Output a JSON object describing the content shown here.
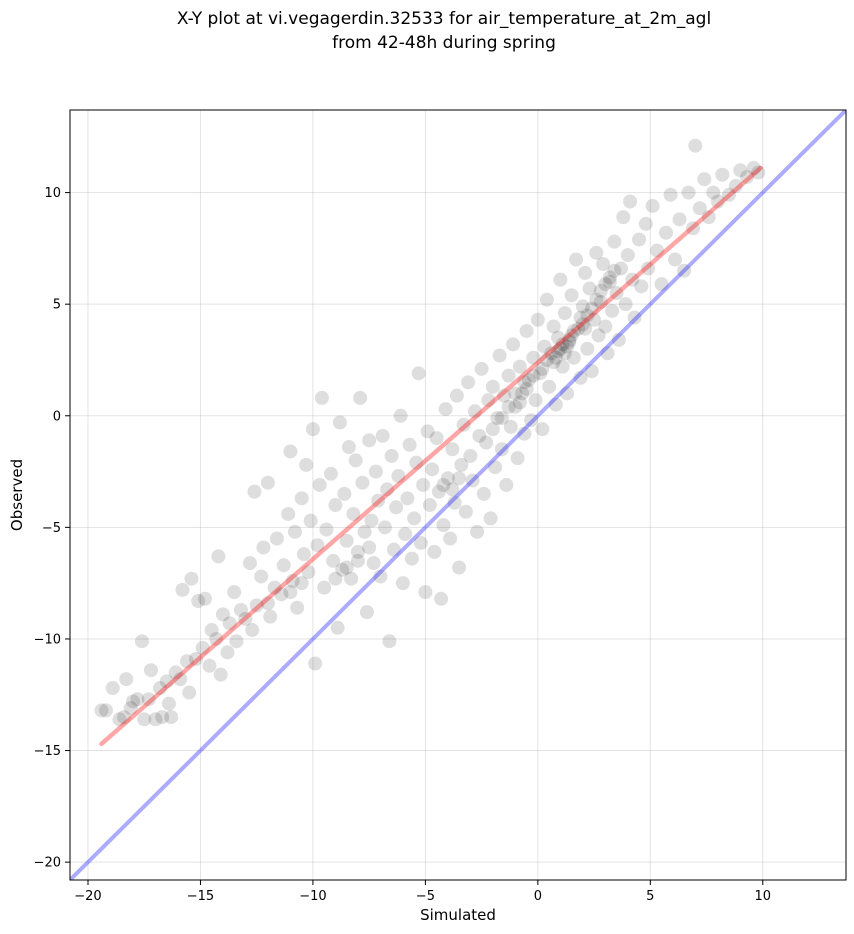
{
  "chart_data": {
    "type": "scatter",
    "title": "X-Y plot at vi.vegagerdin.32533 for air_temperature_at_2m_agl",
    "subtitle": "from 42-48h during spring",
    "xlabel": "Simulated",
    "ylabel": "Observed",
    "xlim": [
      -20.8,
      13.7
    ],
    "ylim": [
      -20.8,
      13.7
    ],
    "xticks": [
      -20,
      -15,
      -10,
      -5,
      0,
      5,
      10
    ],
    "yticks": [
      -20,
      -15,
      -10,
      -5,
      0,
      5,
      10
    ],
    "xtick_labels": [
      "−20",
      "−15",
      "−10",
      "−5",
      "0",
      "5",
      "10"
    ],
    "ytick_labels": [
      "−20",
      "−15",
      "−10",
      "−5",
      "0",
      "5",
      "10"
    ],
    "grid": true,
    "marker_color": "#000000",
    "marker_alpha": 0.08,
    "series": [
      {
        "values": [
          [
            -19.4,
            -13.2
          ],
          [
            -19.2,
            -13.2
          ],
          [
            -18.9,
            -12.2
          ],
          [
            -18.6,
            -13.6
          ],
          [
            -18.4,
            -13.5
          ],
          [
            -18.3,
            -11.8
          ],
          [
            -18.1,
            -13.1
          ],
          [
            -18.0,
            -12.8
          ],
          [
            -17.8,
            -12.7
          ],
          [
            -17.6,
            -10.1
          ],
          [
            -17.5,
            -13.6
          ],
          [
            -17.3,
            -12.7
          ],
          [
            -17.2,
            -11.4
          ],
          [
            -17.0,
            -13.6
          ],
          [
            -16.8,
            -12.2
          ],
          [
            -16.7,
            -13.5
          ],
          [
            -16.5,
            -11.9
          ],
          [
            -16.4,
            -12.9
          ],
          [
            -16.3,
            -13.5
          ],
          [
            -16.1,
            -11.5
          ],
          [
            -15.9,
            -11.8
          ],
          [
            -15.8,
            -7.8
          ],
          [
            -15.6,
            -11.0
          ],
          [
            -15.5,
            -12.4
          ],
          [
            -15.4,
            -7.3
          ],
          [
            -15.2,
            -10.9
          ],
          [
            -15.1,
            -8.3
          ],
          [
            -14.9,
            -10.4
          ],
          [
            -14.8,
            -8.2
          ],
          [
            -14.6,
            -11.2
          ],
          [
            -14.5,
            -9.6
          ],
          [
            -14.3,
            -10.0
          ],
          [
            -14.2,
            -6.3
          ],
          [
            -14.1,
            -11.6
          ],
          [
            -14.0,
            -8.9
          ],
          [
            -13.8,
            -10.6
          ],
          [
            -13.7,
            -9.3
          ],
          [
            -13.5,
            -7.9
          ],
          [
            -13.4,
            -10.1
          ],
          [
            -13.2,
            -8.7
          ],
          [
            -13.0,
            -9.1
          ],
          [
            -12.8,
            -6.6
          ],
          [
            -12.7,
            -9.6
          ],
          [
            -12.6,
            -3.4
          ],
          [
            -12.5,
            -8.5
          ],
          [
            -12.3,
            -7.2
          ],
          [
            -12.2,
            -5.9
          ],
          [
            -12.0,
            -3.0
          ],
          [
            -11.9,
            -9.0
          ],
          [
            -11.7,
            -7.7
          ],
          [
            -11.6,
            -5.5
          ],
          [
            -11.4,
            -8.0
          ],
          [
            -11.3,
            -6.7
          ],
          [
            -11.1,
            -4.4
          ],
          [
            -11.0,
            -1.6
          ],
          [
            -10.9,
            -7.4
          ],
          [
            -10.8,
            -5.2
          ],
          [
            -10.7,
            -8.6
          ],
          [
            -10.5,
            -3.7
          ],
          [
            -10.4,
            -6.2
          ],
          [
            -10.3,
            -2.2
          ],
          [
            -10.2,
            -7.0
          ],
          [
            -10.1,
            -4.7
          ],
          [
            -10.0,
            -0.6
          ],
          [
            -9.9,
            -11.1
          ],
          [
            -9.8,
            -5.8
          ],
          [
            -9.7,
            -3.1
          ],
          [
            -9.6,
            0.8
          ],
          [
            -9.5,
            -7.7
          ],
          [
            -9.4,
            -5.1
          ],
          [
            -9.2,
            -2.6
          ],
          [
            -9.1,
            -6.5
          ],
          [
            -9.0,
            -4.0
          ],
          [
            -8.9,
            -9.5
          ],
          [
            -8.8,
            -0.3
          ],
          [
            -8.7,
            -6.9
          ],
          [
            -8.6,
            -3.5
          ],
          [
            -8.5,
            -5.6
          ],
          [
            -8.4,
            -1.4
          ],
          [
            -8.3,
            -7.3
          ],
          [
            -8.2,
            -4.4
          ],
          [
            -8.1,
            -2.0
          ],
          [
            -8.0,
            -6.1
          ],
          [
            -7.9,
            0.8
          ],
          [
            -7.8,
            -3.0
          ],
          [
            -7.7,
            -5.2
          ],
          [
            -7.6,
            -8.8
          ],
          [
            -7.5,
            -1.1
          ],
          [
            -7.4,
            -4.7
          ],
          [
            -7.3,
            -6.6
          ],
          [
            -7.2,
            -2.5
          ],
          [
            -7.1,
            -3.8
          ],
          [
            -7.0,
            -7.2
          ],
          [
            -6.9,
            -0.9
          ],
          [
            -6.8,
            -5.0
          ],
          [
            -6.7,
            -3.3
          ],
          [
            -6.6,
            -10.1
          ],
          [
            -6.5,
            -1.8
          ],
          [
            -6.4,
            -6.0
          ],
          [
            -6.3,
            -4.1
          ],
          [
            -6.2,
            -2.7
          ],
          [
            -6.1,
            0.0
          ],
          [
            -6.0,
            -7.5
          ],
          [
            -5.9,
            -5.3
          ],
          [
            -5.8,
            -3.7
          ],
          [
            -5.7,
            -1.3
          ],
          [
            -5.6,
            -6.4
          ],
          [
            -5.5,
            -4.6
          ],
          [
            -5.4,
            -2.1
          ],
          [
            -5.3,
            1.9
          ],
          [
            -5.2,
            -5.7
          ],
          [
            -5.1,
            -3.1
          ],
          [
            -5.0,
            -7.9
          ],
          [
            -4.9,
            -0.7
          ],
          [
            -4.8,
            -4.0
          ],
          [
            -4.7,
            -2.4
          ],
          [
            -4.6,
            -6.1
          ],
          [
            -4.5,
            -1.0
          ],
          [
            -4.4,
            -3.4
          ],
          [
            -4.3,
            -8.2
          ],
          [
            -4.2,
            -4.9
          ],
          [
            -4.1,
            0.3
          ],
          [
            -4.0,
            -2.8
          ],
          [
            -3.9,
            -5.5
          ],
          [
            -3.8,
            -1.5
          ],
          [
            -3.7,
            -3.9
          ],
          [
            -3.6,
            0.9
          ],
          [
            -3.5,
            -6.8
          ],
          [
            -3.4,
            -2.2
          ],
          [
            -3.3,
            -0.4
          ],
          [
            -3.2,
            -4.3
          ],
          [
            -3.1,
            1.5
          ],
          [
            -3.0,
            -1.8
          ],
          [
            -2.9,
            -2.9
          ],
          [
            -2.8,
            0.2
          ],
          [
            -2.7,
            -5.2
          ],
          [
            -2.6,
            -0.9
          ],
          [
            -2.5,
            2.1
          ],
          [
            -2.4,
            -3.5
          ],
          [
            -2.3,
            -1.2
          ],
          [
            -2.2,
            0.7
          ],
          [
            -2.1,
            -4.6
          ],
          [
            -2.0,
            1.3
          ],
          [
            -1.9,
            -2.3
          ],
          [
            -1.8,
            -0.1
          ],
          [
            -1.7,
            2.7
          ],
          [
            -1.6,
            -1.5
          ],
          [
            -1.5,
            0.9
          ],
          [
            -1.4,
            -3.1
          ],
          [
            -1.3,
            1.8
          ],
          [
            -1.2,
            -0.5
          ],
          [
            -1.1,
            3.2
          ],
          [
            -1.0,
            0.4
          ],
          [
            -0.9,
            -1.9
          ],
          [
            -0.8,
            2.2
          ],
          [
            -0.7,
            1.0
          ],
          [
            -0.6,
            -0.8
          ],
          [
            -0.5,
            3.8
          ],
          [
            -0.4,
            1.6
          ],
          [
            -0.3,
            -0.2
          ],
          [
            -0.2,
            2.6
          ],
          [
            -0.1,
            0.7
          ],
          [
            0.0,
            4.3
          ],
          [
            0.1,
            1.9
          ],
          [
            0.2,
            -0.6
          ],
          [
            0.3,
            3.1
          ],
          [
            0.4,
            5.2
          ],
          [
            0.5,
            1.3
          ],
          [
            0.6,
            2.8
          ],
          [
            0.7,
            4.0
          ],
          [
            0.8,
            0.5
          ],
          [
            0.9,
            3.5
          ],
          [
            1.0,
            6.1
          ],
          [
            1.1,
            2.2
          ],
          [
            1.2,
            4.6
          ],
          [
            1.3,
            1.0
          ],
          [
            1.4,
            3.3
          ],
          [
            1.5,
            5.4
          ],
          [
            1.6,
            2.6
          ],
          [
            1.7,
            7.0
          ],
          [
            1.8,
            3.9
          ],
          [
            1.9,
            1.7
          ],
          [
            2.0,
            4.9
          ],
          [
            2.1,
            6.4
          ],
          [
            2.2,
            3.0
          ],
          [
            2.3,
            5.7
          ],
          [
            2.4,
            2.0
          ],
          [
            2.5,
            4.3
          ],
          [
            2.6,
            7.3
          ],
          [
            2.7,
            3.6
          ],
          [
            2.8,
            5.1
          ],
          [
            2.9,
            6.8
          ],
          [
            3.0,
            4.0
          ],
          [
            3.1,
            2.8
          ],
          [
            3.2,
            6.0
          ],
          [
            3.3,
            4.7
          ],
          [
            3.4,
            7.8
          ],
          [
            3.5,
            5.5
          ],
          [
            3.6,
            3.4
          ],
          [
            3.7,
            6.6
          ],
          [
            3.8,
            8.9
          ],
          [
            3.9,
            5.0
          ],
          [
            4.0,
            7.2
          ],
          [
            4.1,
            9.6
          ],
          [
            4.2,
            6.1
          ],
          [
            4.3,
            4.4
          ],
          [
            4.5,
            7.9
          ],
          [
            4.6,
            5.8
          ],
          [
            4.8,
            8.6
          ],
          [
            4.9,
            6.6
          ],
          [
            5.1,
            9.4
          ],
          [
            5.3,
            7.4
          ],
          [
            5.5,
            5.9
          ],
          [
            5.7,
            8.2
          ],
          [
            5.9,
            9.9
          ],
          [
            6.1,
            7.0
          ],
          [
            6.3,
            8.8
          ],
          [
            6.5,
            6.5
          ],
          [
            6.7,
            10.0
          ],
          [
            6.9,
            8.4
          ],
          [
            7.0,
            12.1
          ],
          [
            7.2,
            9.3
          ],
          [
            7.4,
            10.6
          ],
          [
            7.6,
            8.9
          ],
          [
            7.8,
            10.0
          ],
          [
            8.0,
            9.6
          ],
          [
            8.2,
            10.8
          ],
          [
            8.5,
            9.9
          ],
          [
            8.8,
            10.3
          ],
          [
            9.0,
            11.0
          ],
          [
            9.3,
            10.7
          ],
          [
            9.6,
            11.1
          ],
          [
            9.8,
            10.9
          ],
          [
            1.0,
            3.0
          ],
          [
            1.2,
            2.8
          ],
          [
            0.8,
            2.6
          ],
          [
            1.4,
            3.4
          ],
          [
            1.1,
            3.2
          ],
          [
            0.9,
            2.9
          ],
          [
            1.3,
            3.1
          ],
          [
            1.5,
            3.6
          ],
          [
            0.7,
            2.4
          ],
          [
            1.6,
            3.8
          ],
          [
            2.0,
            4.1
          ],
          [
            2.2,
            4.5
          ],
          [
            2.4,
            4.8
          ],
          [
            2.6,
            5.2
          ],
          [
            2.8,
            5.6
          ],
          [
            3.0,
            5.9
          ],
          [
            3.2,
            6.2
          ],
          [
            3.4,
            6.5
          ],
          [
            2.1,
            3.9
          ],
          [
            1.9,
            4.4
          ],
          [
            -0.5,
            1.2
          ],
          [
            -0.8,
            0.6
          ],
          [
            -1.0,
            1.0
          ],
          [
            -1.3,
            0.4
          ],
          [
            -0.2,
            1.8
          ],
          [
            0.2,
            2.1
          ],
          [
            0.4,
            2.5
          ],
          [
            -0.6,
            1.5
          ],
          [
            -1.6,
            -0.1
          ],
          [
            -2.0,
            -0.6
          ],
          [
            -3.5,
            -2.8
          ],
          [
            -3.8,
            -3.3
          ],
          [
            -4.2,
            -3.1
          ],
          [
            -8.5,
            -6.8
          ],
          [
            -8.0,
            -6.5
          ],
          [
            -9.0,
            -7.3
          ],
          [
            -7.5,
            -5.9
          ],
          [
            -11.0,
            -7.9
          ],
          [
            -10.5,
            -7.5
          ],
          [
            -12.0,
            -8.4
          ]
        ]
      }
    ],
    "fit_line": {
      "points": [
        [
          -19.4,
          -14.7
        ],
        [
          9.9,
          11.1
        ]
      ],
      "color": "#ff0000",
      "alpha": 0.35
    },
    "identity_line": {
      "points": [
        [
          -20.8,
          -20.8
        ],
        [
          13.7,
          13.7
        ]
      ],
      "color": "#0000ff",
      "alpha": 0.33
    }
  }
}
